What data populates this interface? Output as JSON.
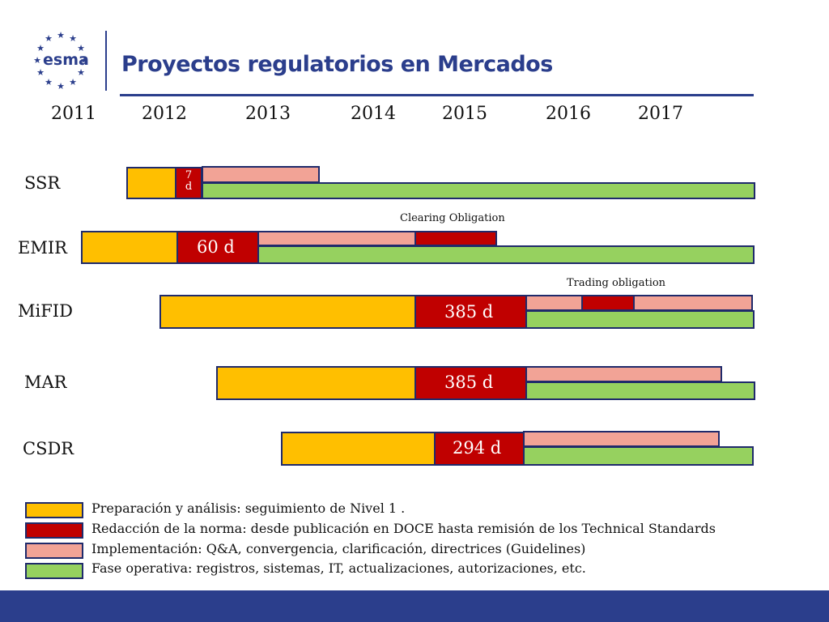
{
  "header": {
    "logo_text": "esma",
    "title": "Proyectos regulatorios en Mercados"
  },
  "years": [
    "2011",
    "2012",
    "2013",
    "2014",
    "2015",
    "2016",
    "2017"
  ],
  "rows": [
    {
      "label": "SSR",
      "red_label_line1": "7",
      "red_label_line2": "d"
    },
    {
      "label": "EMIR",
      "red_label": "60 d",
      "note": "Clearing Obligation"
    },
    {
      "label": "MiFID",
      "red_label": "385 d",
      "note": "Trading obligation"
    },
    {
      "label": "MAR",
      "red_label": "385 d"
    },
    {
      "label": "CSDR",
      "red_label": "294 d"
    }
  ],
  "legend": [
    {
      "text": "Preparación y análisis: seguimiento de Nivel 1 .",
      "color": "#ffbf00"
    },
    {
      "text": "Redacción de la norma: desde publicación en DOCE hasta remisión de los Technical Standards",
      "color": "#c00000"
    },
    {
      "text": "Implementación: Q&A, convergencia, clarificación, directrices (Guidelines)",
      "color": "#f2a396"
    },
    {
      "text": "Fase operativa: registros, sistemas, IT, actualizaciones, autorizaciones, etc.",
      "color": "#96d15f"
    }
  ],
  "colors": {
    "brand": "#2b3e8c",
    "preparation": "#ffbf00",
    "drafting": "#c00000",
    "implementation": "#f2a396",
    "operational": "#96d15f"
  }
}
